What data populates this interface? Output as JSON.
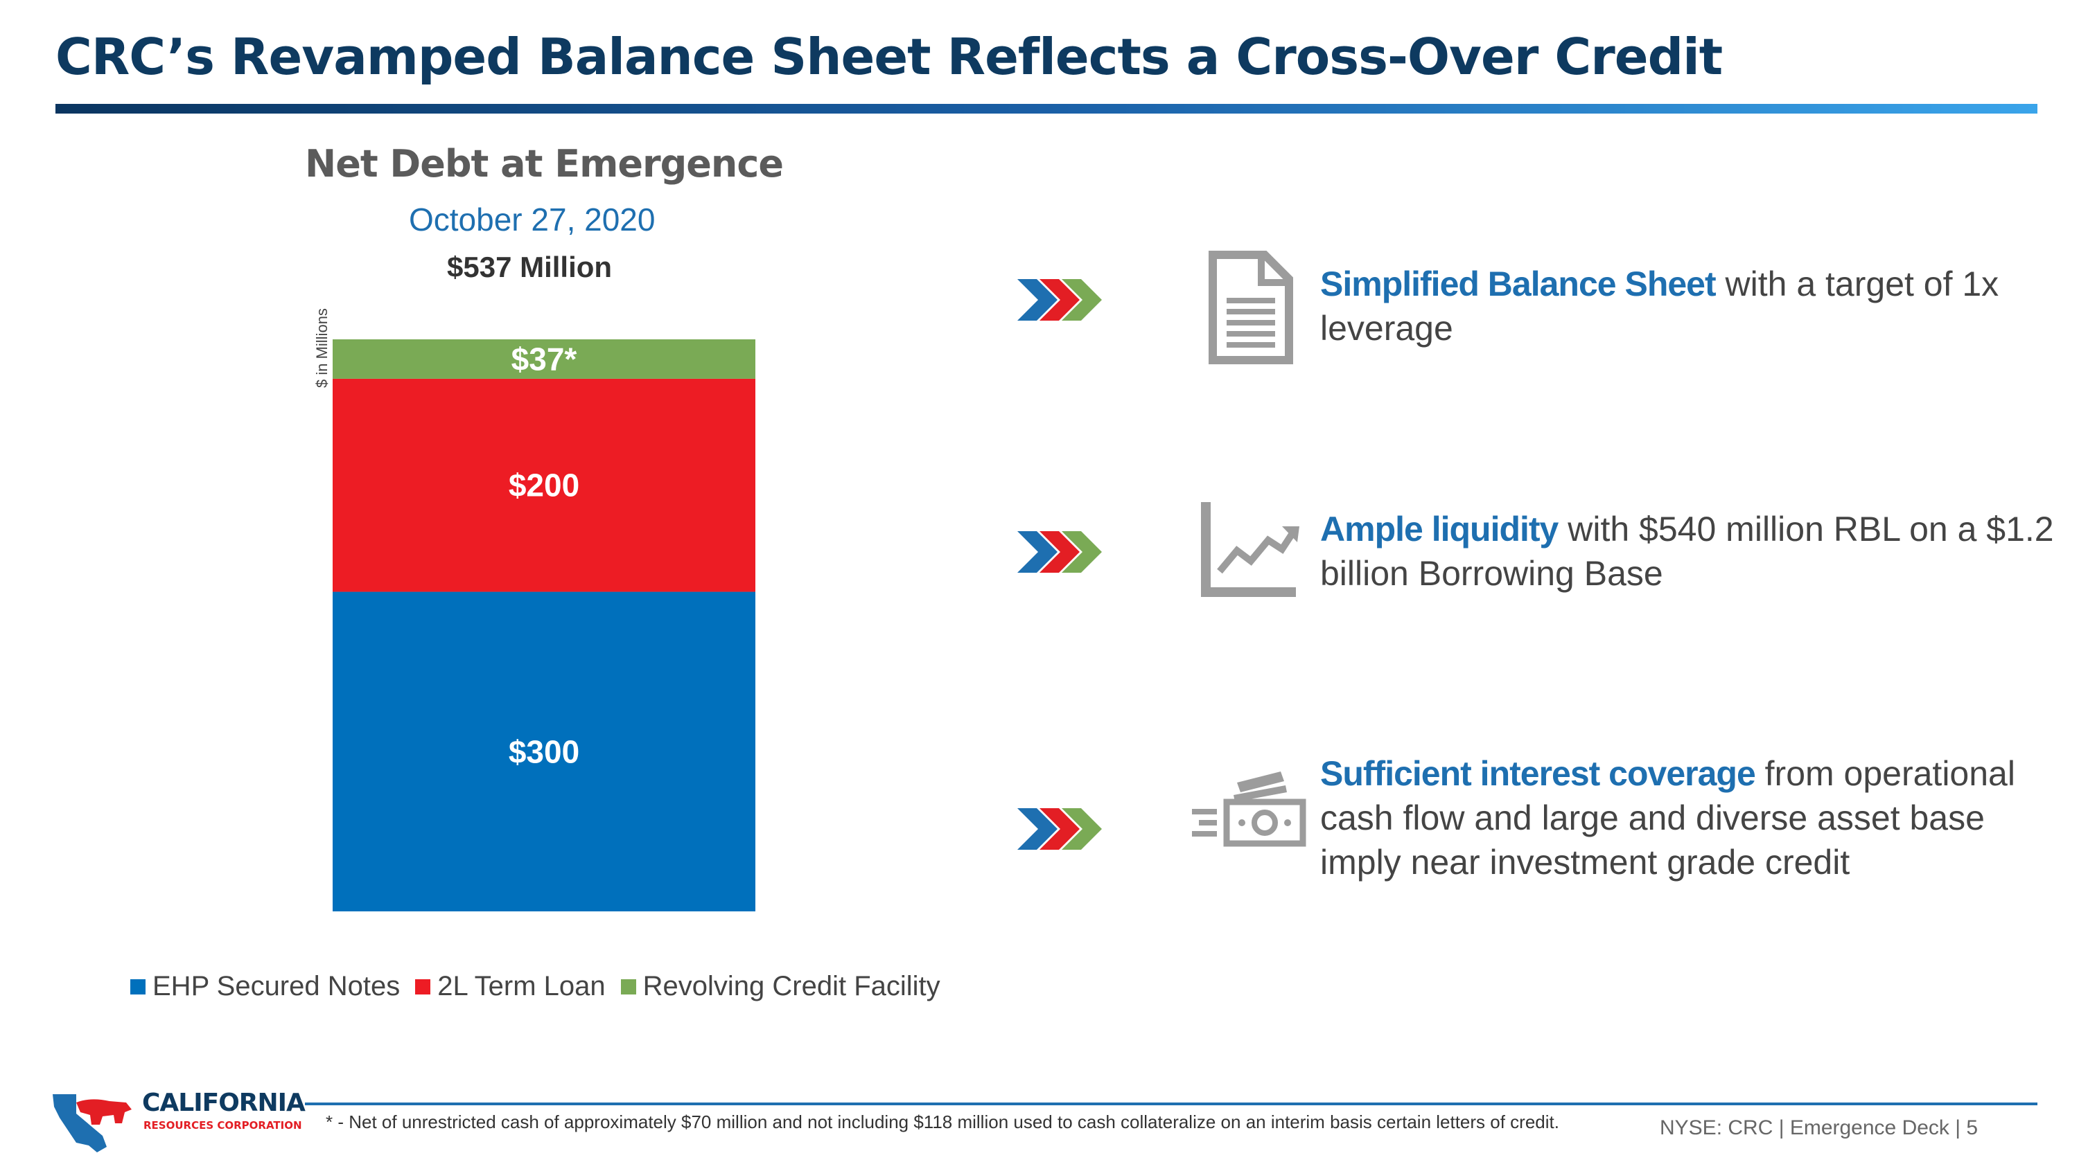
{
  "page": {
    "title": "CRC’s Revamped Balance Sheet Reflects a Cross-Over Credit"
  },
  "chart": {
    "title": "Net Debt at Emergence",
    "date": "October 27, 2020",
    "total": "$537 Million",
    "ylabel": "$ in Millions"
  },
  "chart_data": {
    "type": "bar",
    "stacked": true,
    "title": "Net Debt at Emergence",
    "subtitle": "October 27, 2020",
    "ylabel": "$ in Millions",
    "categories": [
      ""
    ],
    "series": [
      {
        "name": "EHP Secured Notes",
        "values": [
          300
        ],
        "label": "$300",
        "color": "#0070bc"
      },
      {
        "name": "2L Term Loan",
        "values": [
          200
        ],
        "label": "$200",
        "color": "#ed1c24"
      },
      {
        "name": "Revolving Credit Facility",
        "values": [
          37
        ],
        "label": "$37*",
        "color": "#7aaa55"
      }
    ],
    "total": 537,
    "ylim": [
      0,
      537
    ],
    "grid": false,
    "legend": "bottom"
  },
  "legend": [
    {
      "label": "EHP Secured Notes",
      "color": "#0070bc"
    },
    {
      "label": "2L Term Loan",
      "color": "#ed1c24"
    },
    {
      "label": "Revolving Credit Facility",
      "color": "#7aaa55"
    }
  ],
  "bullets": [
    {
      "icon": "document-icon",
      "highlight": "Simplified Balance Sheet",
      "text": " with a target of 1x leverage"
    },
    {
      "icon": "trending-chart-icon",
      "highlight": "Ample liquidity",
      "text": " with $540 million RBL on a $1.2 billion Borrowing Base"
    },
    {
      "icon": "cash-icon",
      "highlight": "Sufficient interest coverage",
      "text": " from operational cash flow and large and diverse asset base imply near investment grade credit"
    }
  ],
  "chevron_colors": [
    "#1e6fb0",
    "#e31e24",
    "#7aaa55"
  ],
  "footer": {
    "footnote": "* - Net of unrestricted cash of approximately $70 million and not including $118 million used to cash collateralize on an interim basis certain letters of credit.",
    "right": "NYSE: CRC | Emergence Deck | 5"
  },
  "logo": {
    "name": "CALIFORNIA",
    "sub": "RESOURCES CORPORATION"
  }
}
